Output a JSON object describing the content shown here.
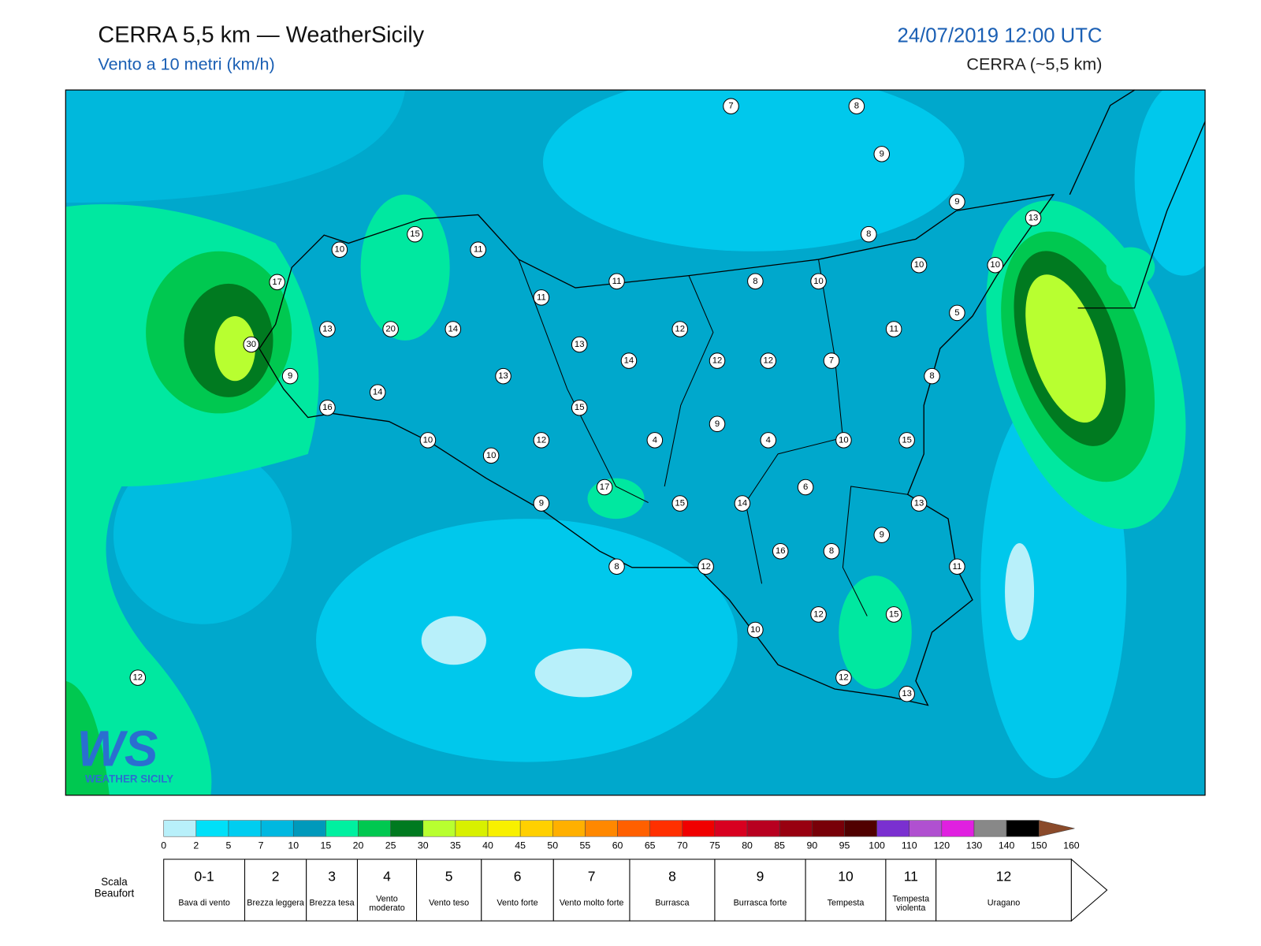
{
  "header": {
    "title": "CERRA 5,5 km — WeatherSicily",
    "subtitle": "Vento a 10 metri (km/h)",
    "date": "24/07/2019 12:00 UTC",
    "model": "CERRA (~5,5 km)"
  },
  "stations": [
    7,
    8,
    9,
    9,
    13,
    15,
    11,
    10,
    8,
    10,
    10,
    17,
    8,
    10,
    11,
    11,
    5,
    13,
    20,
    14,
    12,
    11,
    30,
    13,
    14,
    12,
    12,
    7,
    9,
    13,
    8,
    14,
    16,
    15,
    9,
    10,
    12,
    4,
    4,
    10,
    15,
    10,
    17,
    6,
    9,
    15,
    14,
    13,
    9,
    16,
    8,
    8,
    12,
    11,
    12,
    15,
    10,
    12,
    12,
    13
  ],
  "legend": {
    "ticks": [
      0,
      2,
      5,
      7,
      10,
      15,
      20,
      25,
      30,
      35,
      40,
      45,
      50,
      55,
      60,
      65,
      70,
      75,
      80,
      85,
      90,
      95,
      100,
      110,
      120,
      130,
      140,
      150,
      160
    ],
    "colors": [
      "#b8f0fa",
      "#00e0f8",
      "#00cdf0",
      "#00b8e0",
      "#0099bb",
      "#00f0a0",
      "#00c850",
      "#007a20",
      "#b8ff30",
      "#d8f000",
      "#f8f000",
      "#ffd000",
      "#ffb000",
      "#ff8800",
      "#ff6000",
      "#ff3000",
      "#f00000",
      "#d80020",
      "#b80020",
      "#980010",
      "#780008",
      "#500000",
      "#7a30d0",
      "#b050d0",
      "#e020e0",
      "#888888",
      "#585858",
      "#000000",
      "#8a4a2a",
      "#c88040"
    ]
  },
  "beaufort": {
    "label": "Scala Beaufort",
    "levels": [
      {
        "force": "0-1",
        "name": "Bava di vento"
      },
      {
        "force": "2",
        "name": "Brezza leggera"
      },
      {
        "force": "3",
        "name": "Brezza tesa"
      },
      {
        "force": "4",
        "name": "Vento moderato"
      },
      {
        "force": "5",
        "name": "Vento teso"
      },
      {
        "force": "6",
        "name": "Vento forte"
      },
      {
        "force": "7",
        "name": "Vento molto forte"
      },
      {
        "force": "8",
        "name": "Burrasca"
      },
      {
        "force": "9",
        "name": "Burrasca forte"
      },
      {
        "force": "10",
        "name": "Tempesta"
      },
      {
        "force": "11",
        "name": "Tempesta violenta"
      },
      {
        "force": "12",
        "name": "Uragano"
      }
    ]
  },
  "logo": {
    "mark": "WS",
    "text": "WEATHER SICILY"
  }
}
